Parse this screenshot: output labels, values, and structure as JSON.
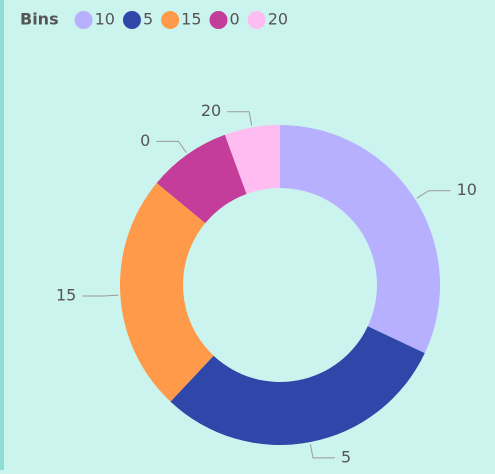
{
  "chart_data": {
    "type": "donut",
    "legend_title": "Bins",
    "categories": [
      "10",
      "5",
      "15",
      "0",
      "20"
    ],
    "values": [
      32,
      30,
      24,
      8.4,
      5.6
    ],
    "colors": [
      "#b6b0ff",
      "#2e47a9",
      "#fe9a4a",
      "#c43d9a",
      "#ffbcf0"
    ],
    "legend": "top-left"
  }
}
